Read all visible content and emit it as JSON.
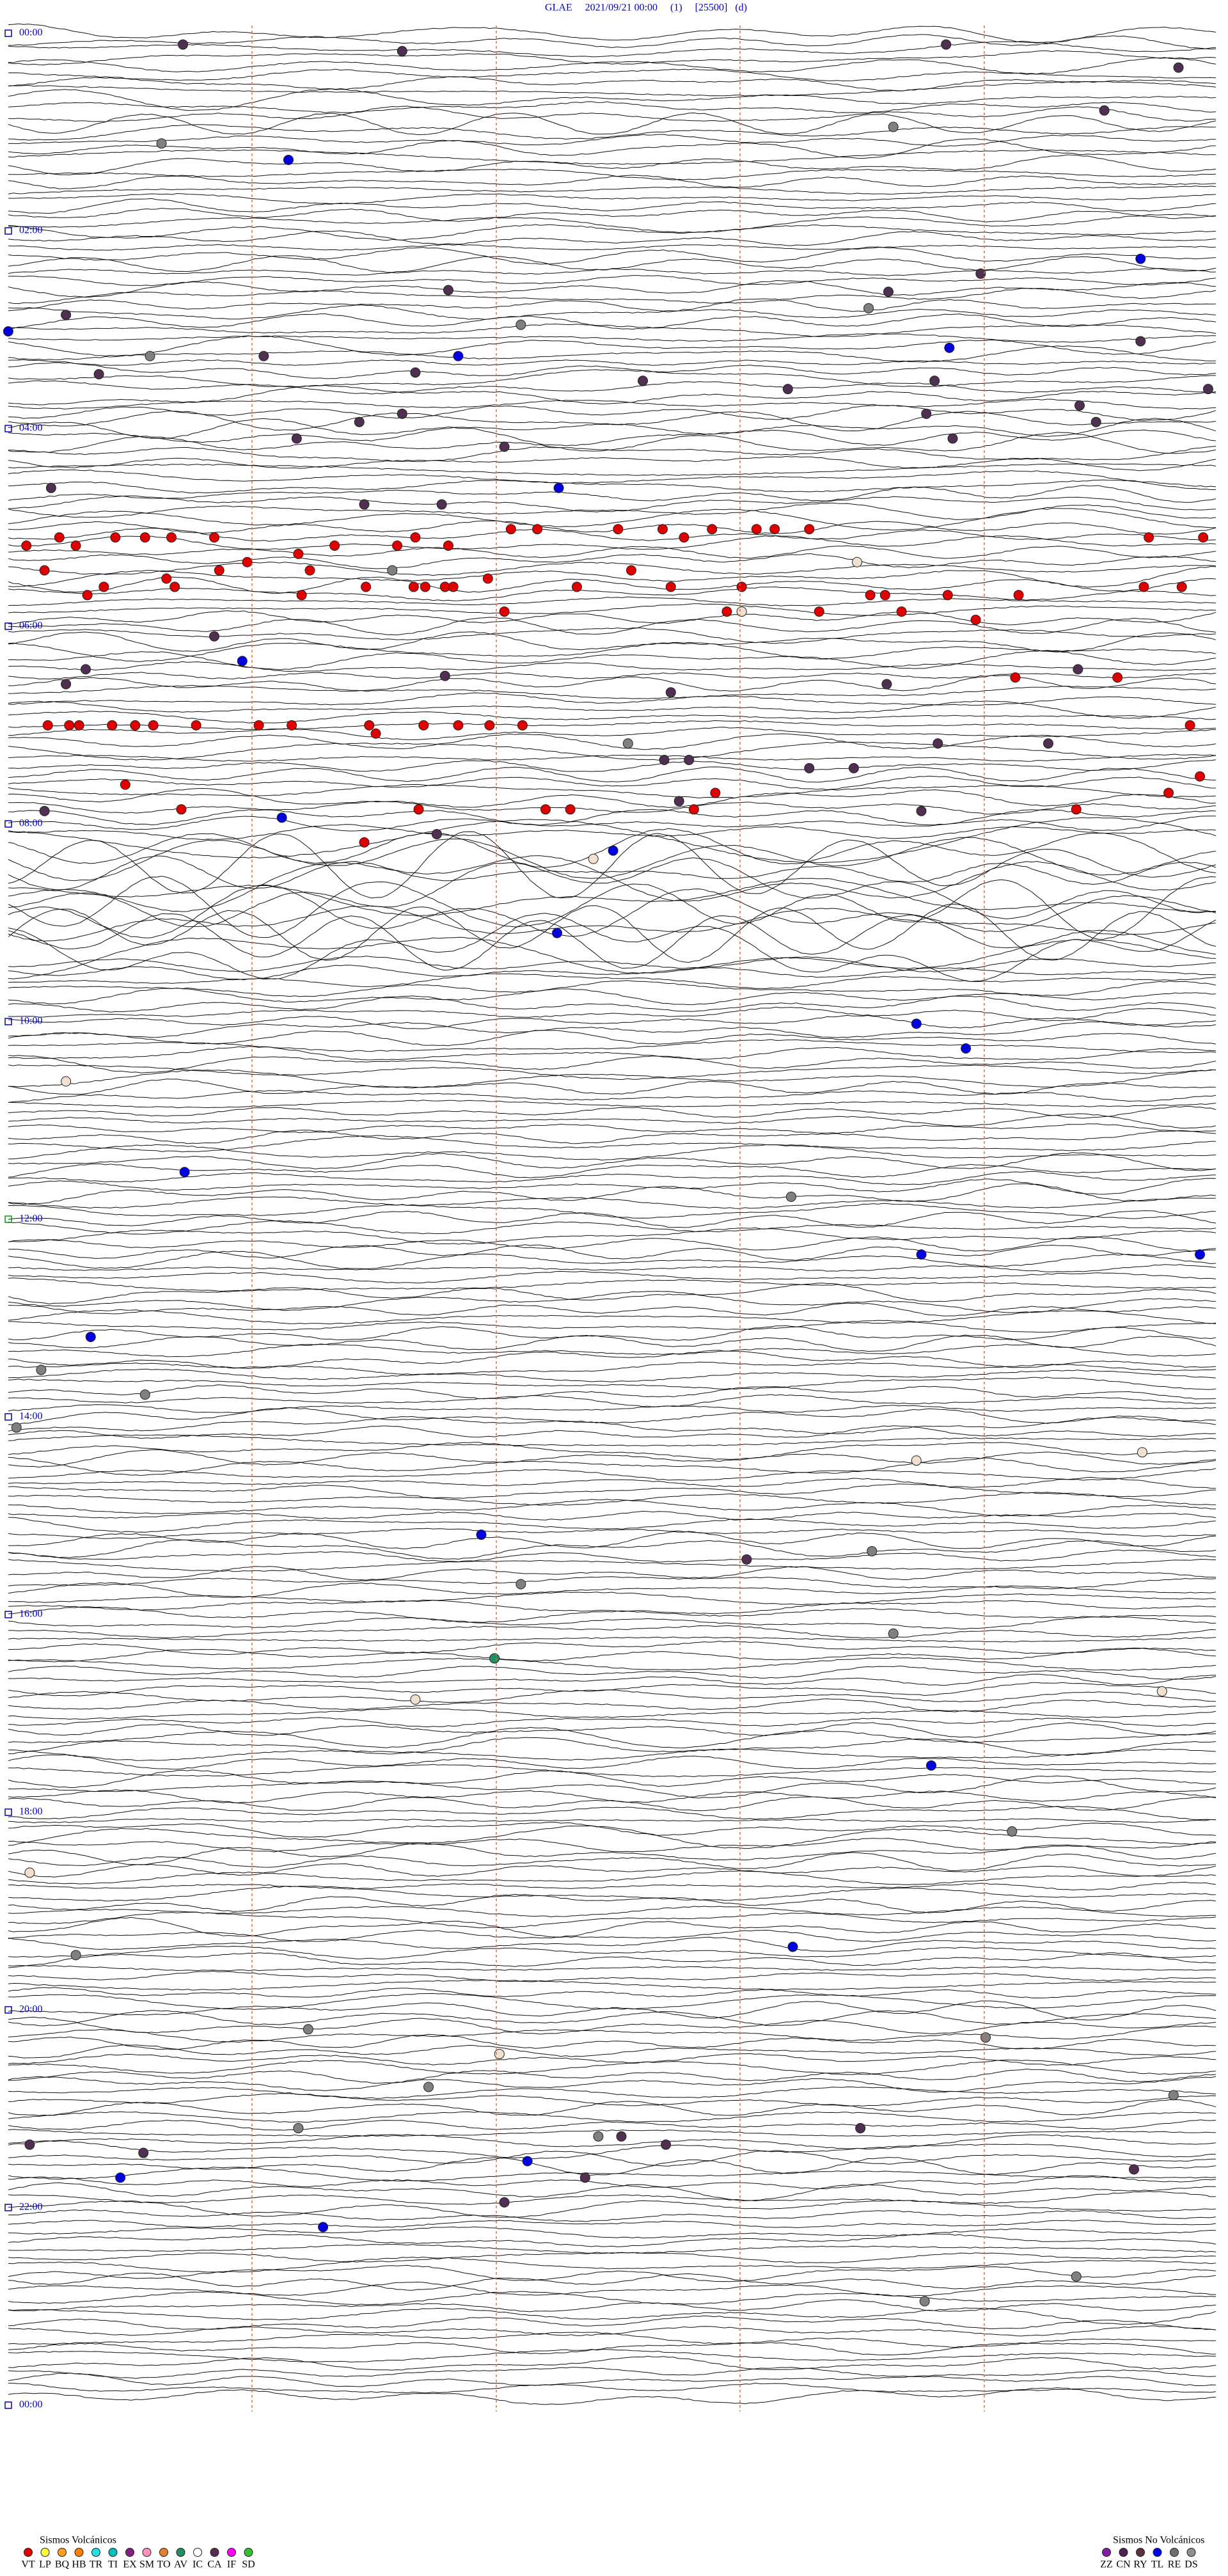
{
  "header": {
    "title": "GLAE     2021/09/21 00:00     (1)     [25500]   (d)"
  },
  "time_labels": [
    "00:00",
    "02:00",
    "04:00",
    "06:00",
    "08:00",
    "10:00",
    "12:00",
    "14:00",
    "16:00",
    "18:00",
    "20:00",
    "22:00",
    "00:00"
  ],
  "legend": {
    "volcanic": {
      "title": "Sismos Volcánicos",
      "items": [
        {
          "code": "VT",
          "color": "#e00000"
        },
        {
          "code": "LP",
          "color": "#ffff40"
        },
        {
          "code": "BQ",
          "color": "#ffa020"
        },
        {
          "code": "HB",
          "color": "#ff8000"
        },
        {
          "code": "TR",
          "color": "#20e0e0"
        },
        {
          "code": "TI",
          "color": "#00c0c0"
        },
        {
          "code": "EX",
          "color": "#802080"
        },
        {
          "code": "SM",
          "color": "#ff90c0"
        },
        {
          "code": "TO",
          "color": "#e08030"
        },
        {
          "code": "AV",
          "color": "#209060"
        },
        {
          "code": "IC",
          "color": "#ffffff"
        },
        {
          "code": "CA",
          "color": "#503050"
        },
        {
          "code": "IF",
          "color": "#ff00ff"
        },
        {
          "code": "SD",
          "color": "#30c030"
        }
      ]
    },
    "non_volcanic": {
      "title": "Sismos No Volcánicos",
      "items": [
        {
          "code": "ZZ",
          "color": "#8020a0"
        },
        {
          "code": "CN",
          "color": "#502050"
        },
        {
          "code": "RY",
          "color": "#603040"
        },
        {
          "code": "TL",
          "color": "#0000e0"
        },
        {
          "code": "RE",
          "color": "#707070"
        },
        {
          "code": "DS",
          "color": "#909090"
        }
      ]
    }
  }
}
